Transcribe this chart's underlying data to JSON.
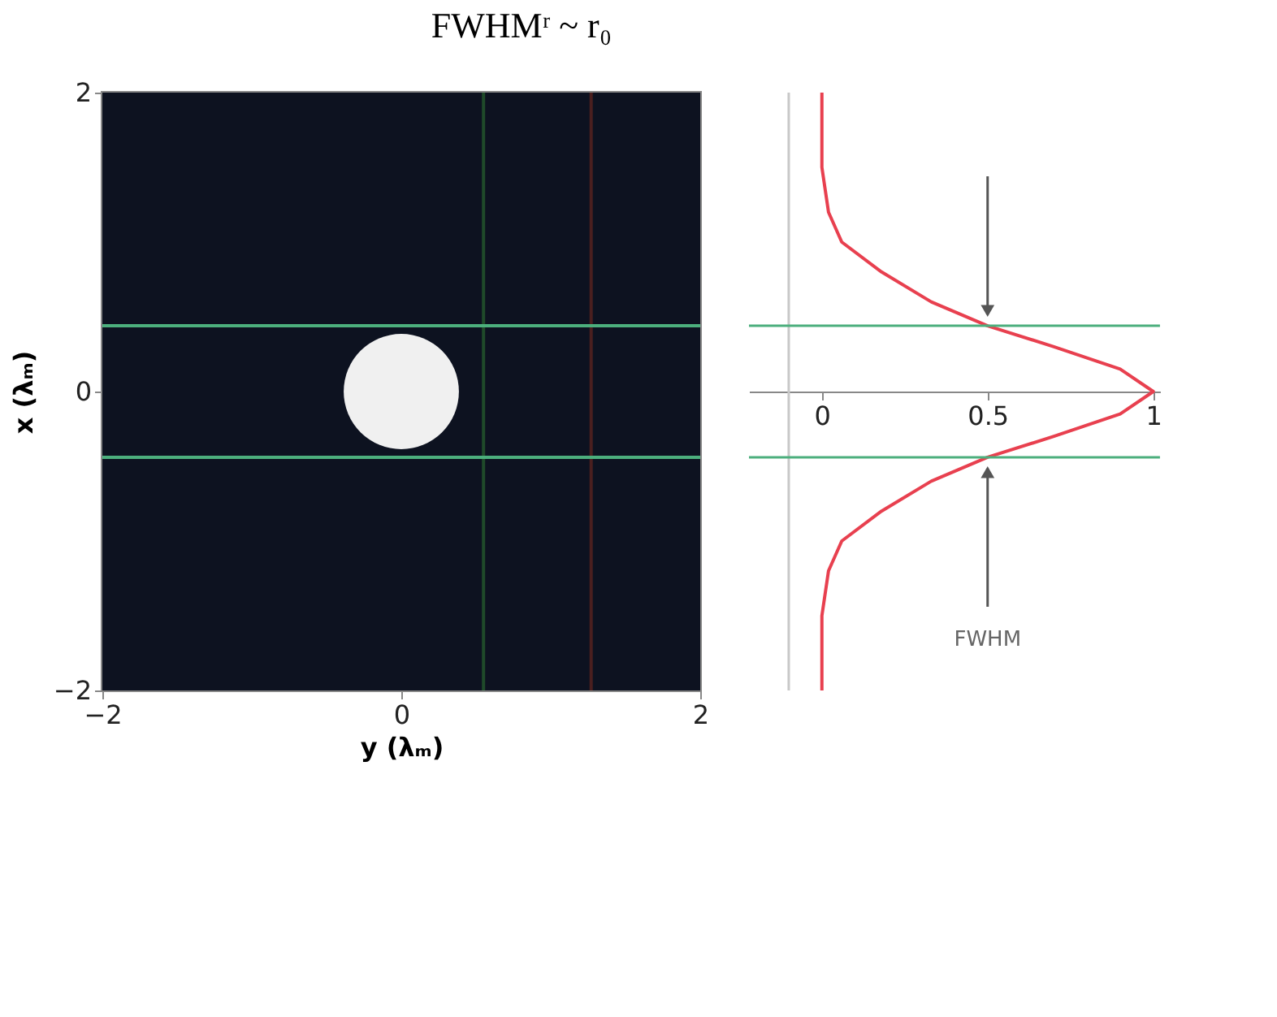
{
  "chart_data": [
    {
      "type": "bubble",
      "title": "FWHMʳ ~ r₀",
      "xlabel": "y (λₘ)",
      "ylabel": "x (λₘ)",
      "x": [
        0
      ],
      "values": [
        0
      ],
      "sizes": [
        1
      ],
      "color": "#f0f0f0",
      "xlim": [
        -2,
        2
      ],
      "ylim": [
        -2,
        2
      ],
      "xticks": [
        -2,
        0,
        2
      ],
      "yticks": [
        -2,
        0,
        2
      ],
      "grid": false,
      "ref_lines": [
        {
          "axis": "x",
          "value": 0.55,
          "color": "#1f4a2a"
        },
        {
          "axis": "x",
          "value": 1.27,
          "color": "#4a1f1f"
        },
        {
          "axis": "y",
          "value": 0.44,
          "color": "#4caf7d"
        },
        {
          "axis": "y",
          "value": -0.44,
          "color": "#4caf7d"
        }
      ]
    },
    {
      "type": "line",
      "series": [
        {
          "color": "#e8404f",
          "x": [
            0,
            0,
            0.02,
            0.06,
            0.18,
            0.33,
            0.5,
            0.7,
            0.9,
            1,
            0.9,
            0.7,
            0.5,
            0.33,
            0.18,
            0.06,
            0.02,
            0,
            0
          ],
          "values": [
            2.0,
            1.5,
            1.2,
            1.0,
            0.8,
            0.6,
            0.44,
            0.3,
            0.15,
            0,
            -0.15,
            -0.3,
            -0.44,
            -0.6,
            -0.8,
            -1.0,
            -1.2,
            -1.5,
            -2.0
          ]
        }
      ],
      "xlim": [
        -0.22,
        1.02
      ],
      "xticks": [
        0,
        0.5,
        1
      ],
      "ylim": [
        -2,
        2
      ],
      "tick_labels": "x",
      "grid": false,
      "annotations": [
        "FWHM"
      ],
      "ref_lines": [
        {
          "axis": "x",
          "value": -0.1,
          "color": "#c8c8c8"
        },
        {
          "axis": "y",
          "value": 0.44,
          "color": "#4caf7d"
        },
        {
          "axis": "y",
          "value": -0.44,
          "color": "#4caf7d"
        }
      ]
    }
  ]
}
